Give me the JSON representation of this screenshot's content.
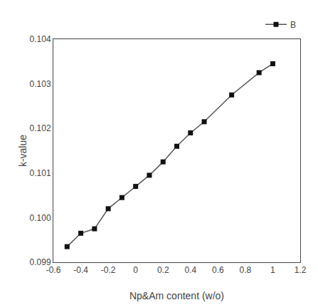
{
  "chart_data": {
    "type": "line",
    "x": [
      -0.5,
      -0.4,
      -0.3,
      -0.2,
      -0.1,
      0.0,
      0.1,
      0.2,
      0.3,
      0.4,
      0.5,
      0.7,
      0.9,
      1.0
    ],
    "series": [
      {
        "name": "B",
        "color": "#555555",
        "marker": "square",
        "colors": [
          "#111111",
          "#111111",
          "#111111",
          "#111111",
          "#111111",
          "#111111",
          "#111111",
          "#111111",
          "#111111",
          "#111111",
          "#111111",
          "#111111",
          "#111111",
          "#111111"
        ],
        "values": [
          0.09935,
          0.09965,
          0.09975,
          0.1002,
          0.10045,
          0.1007,
          0.10095,
          0.10125,
          0.1016,
          0.1019,
          0.10215,
          0.10275,
          0.10325,
          0.10345
        ]
      }
    ],
    "xlabel": "Np&Am content (w/o)",
    "ylabel": "k-value",
    "xlim": [
      -0.6,
      1.2
    ],
    "ylim": [
      0.099,
      0.104
    ],
    "xticks": [
      -0.6,
      -0.4,
      -0.2,
      0,
      0.2,
      0.4,
      0.6,
      0.8,
      1,
      1.2
    ],
    "yticks": [
      0.099,
      {
        "value": 0.1,
        "label": "0.100"
      },
      0.101,
      0.102,
      0.103,
      0.104
    ],
    "grid": false,
    "legend": "upper right"
  }
}
